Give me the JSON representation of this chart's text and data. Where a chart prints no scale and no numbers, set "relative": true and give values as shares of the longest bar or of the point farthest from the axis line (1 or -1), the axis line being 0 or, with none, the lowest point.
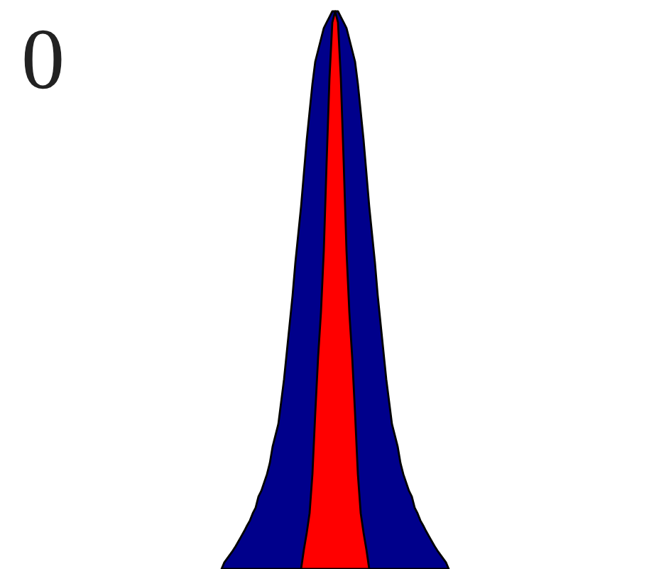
{
  "chart_data": {
    "type": "area",
    "relative": true,
    "categories": [
      null,
      null,
      null,
      null,
      null,
      null,
      null,
      null,
      null,
      null,
      null,
      null,
      null,
      null,
      null,
      null,
      null,
      null,
      null,
      null,
      null,
      null,
      null,
      null,
      null,
      null,
      null,
      null,
      null,
      null,
      null,
      null,
      null,
      null,
      null,
      null,
      null,
      null,
      null,
      null,
      null,
      null,
      null,
      null,
      null,
      null,
      null,
      null,
      null,
      null,
      null,
      null,
      null,
      null,
      null,
      null,
      null,
      null,
      null,
      null,
      null,
      null,
      null,
      null,
      null,
      null,
      null,
      null,
      null,
      null,
      null,
      null,
      null,
      null,
      null,
      null,
      null,
      null,
      null,
      null,
      null
    ],
    "series": [
      {
        "color": "#00008b",
        "values": [
          0,
          0.012,
          0.019,
          0.026,
          0.033,
          0.041,
          0.05,
          0.059,
          0.068,
          0.078,
          0.087,
          0.1,
          0.11,
          0.13,
          0.14,
          0.155,
          0.17,
          0.19,
          0.22,
          0.24,
          0.26,
          0.3,
          0.34,
          0.39,
          0.44,
          0.49,
          0.55,
          0.6,
          0.65,
          0.71,
          0.77,
          0.82,
          0.87,
          0.91,
          0.93,
          0.95,
          0.97,
          0.98,
          0.99,
          1.0,
          1.0,
          1.0,
          0.99,
          0.98,
          0.97,
          0.95,
          0.93,
          0.91,
          0.87,
          0.82,
          0.77,
          0.71,
          0.65,
          0.6,
          0.55,
          0.49,
          0.44,
          0.39,
          0.34,
          0.3,
          0.26,
          0.24,
          0.22,
          0.19,
          0.17,
          0.155,
          0.14,
          0.13,
          0.11,
          0.1,
          0.087,
          0.078,
          0.068,
          0.059,
          0.05,
          0.041,
          0.033,
          0.026,
          0.019,
          0.012,
          0
        ]
      },
      {
        "color": "#ff0000",
        "values": [
          null,
          null,
          null,
          null,
          null,
          null,
          null,
          null,
          null,
          null,
          null,
          null,
          null,
          null,
          null,
          null,
          null,
          null,
          null,
          null,
          null,
          null,
          null,
          null,
          null,
          null,
          null,
          null,
          0,
          0.035,
          0.065,
          0.1,
          0.17,
          0.28,
          0.38,
          0.46,
          0.57,
          0.73,
          0.88,
          0.98,
          1.0,
          0.98,
          0.88,
          0.73,
          0.57,
          0.46,
          0.38,
          0.28,
          0.17,
          0.1,
          0.065,
          0.035,
          0,
          null,
          null,
          null,
          null,
          null,
          null,
          null,
          null,
          null,
          null,
          null,
          null,
          null,
          null,
          null,
          null,
          null,
          null,
          null,
          null,
          null,
          null,
          null,
          null,
          null,
          null,
          null,
          null
        ]
      }
    ],
    "annotations": [
      "0"
    ]
  }
}
